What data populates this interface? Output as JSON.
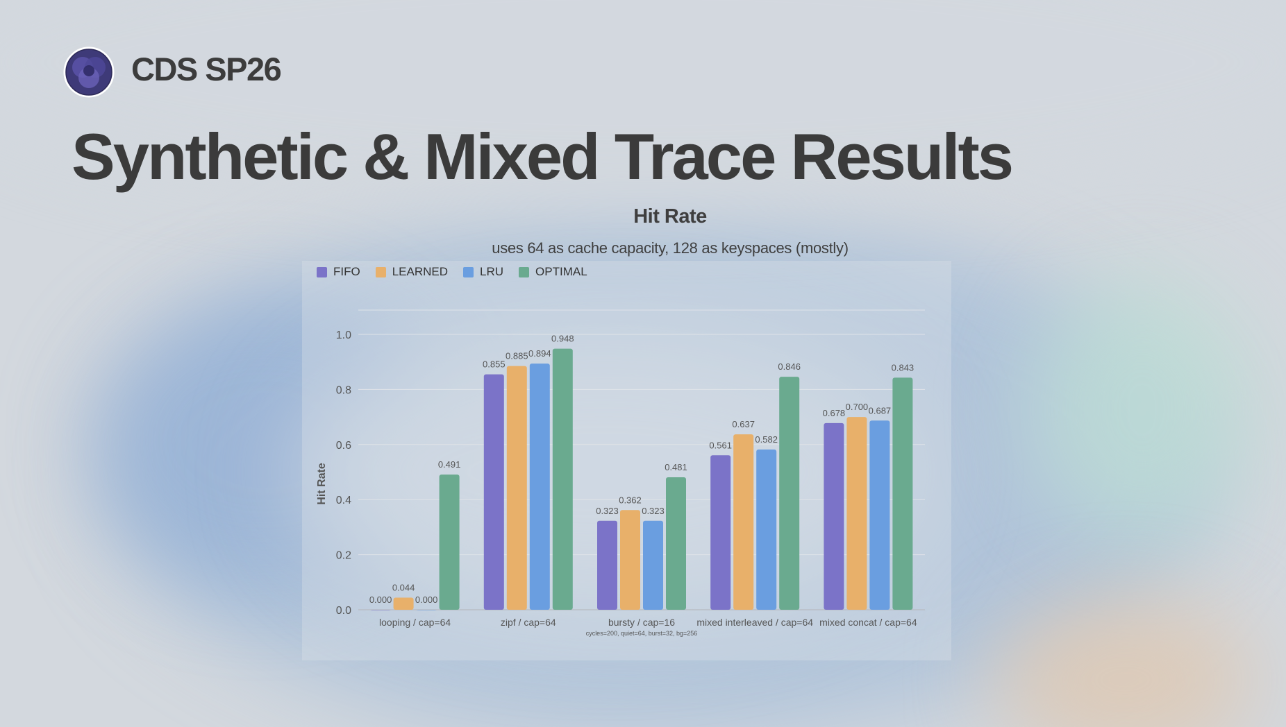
{
  "brand": {
    "name": "CDS SP26",
    "logo_icon": "overlapping-circles-logo-icon"
  },
  "slide": {
    "title": "Synthetic & Mixed Trace Results"
  },
  "colors": {
    "FIFO": "#7b73c8",
    "LEARNED": "#e8b06a",
    "LRU": "#6a9ee0",
    "OPTIMAL": "#6aaa8f",
    "title_text": "#3b3b3b"
  },
  "chart_data": {
    "type": "bar",
    "title": "Hit Rate",
    "subtitle": "uses 64 as cache capacity, 128 as keyspaces (mostly)",
    "xlabel": "",
    "ylabel": "Hit Rate",
    "ylim": [
      0,
      1.0
    ],
    "yticks": [
      "0.0",
      "0.2",
      "0.4",
      "0.6",
      "0.8",
      "1.0"
    ],
    "legend_position": "top-left",
    "grid": true,
    "categories": [
      "looping / cap=64",
      "zipf / cap=64",
      "bursty / cap=16",
      "mixed interleaved / cap=64",
      "mixed concat / cap=64"
    ],
    "category_notes": [
      "",
      "",
      "cycles=200, quiet=64, burst=32, bg=256",
      "",
      ""
    ],
    "series": [
      {
        "name": "FIFO",
        "values": [
          0.0,
          0.855,
          0.323,
          0.561,
          0.678
        ],
        "labels": [
          "0.000",
          "0.855",
          "0.323",
          "0.561",
          "0.678"
        ]
      },
      {
        "name": "LEARNED",
        "values": [
          0.044,
          0.885,
          0.362,
          0.637,
          0.7
        ],
        "labels": [
          "0.044",
          "0.885",
          "0.362",
          "0.637",
          "0.700"
        ]
      },
      {
        "name": "LRU",
        "values": [
          0.0,
          0.894,
          0.323,
          0.582,
          0.687
        ],
        "labels": [
          "0.000",
          "0.894",
          "0.323",
          "0.582",
          "0.687"
        ]
      },
      {
        "name": "OPTIMAL",
        "values": [
          0.491,
          0.948,
          0.481,
          0.846,
          0.843
        ],
        "labels": [
          "0.491",
          "0.948",
          "0.481",
          "0.846",
          "0.843"
        ]
      }
    ]
  }
}
